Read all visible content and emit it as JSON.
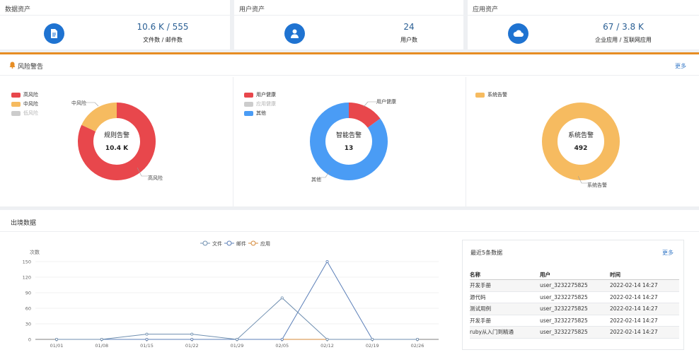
{
  "cards": [
    {
      "title": "数据资产",
      "value": "10.6 K / 555",
      "sub": "文件数 / 邮件数",
      "icon": "document-icon"
    },
    {
      "title": "用户资产",
      "value": "24",
      "sub": "用户数",
      "icon": "user-icon"
    },
    {
      "title": "应用资产",
      "value": "67 / 3.8 K",
      "sub": "企业应用 / 互联网应用",
      "icon": "cloud-icon"
    }
  ],
  "risk": {
    "title": "风险警告",
    "more": "更多",
    "donuts": [
      {
        "center_name": "规则告警",
        "center_value": "10.4 K",
        "legend": [
          {
            "label": "高风险",
            "color": "#e8474c",
            "active": true
          },
          {
            "label": "中风险",
            "color": "#f6bb60",
            "active": true
          },
          {
            "label": "低风险",
            "color": "#cccccc",
            "active": false
          }
        ],
        "slices": [
          {
            "label": "高风险",
            "value": 82,
            "color": "#e8474c"
          },
          {
            "label": "中风险",
            "value": 18,
            "color": "#f6bb60"
          }
        ]
      },
      {
        "center_name": "智能告警",
        "center_value": "13",
        "legend": [
          {
            "label": "用户健康",
            "color": "#e8474c",
            "active": true
          },
          {
            "label": "应用健康",
            "color": "#cccccc",
            "active": false
          },
          {
            "label": "其他",
            "color": "#4a9cf5",
            "active": true
          }
        ],
        "slices": [
          {
            "label": "用户健康",
            "value": 15,
            "color": "#e8474c"
          },
          {
            "label": "其他",
            "value": 85,
            "color": "#4a9cf5"
          }
        ]
      },
      {
        "center_name": "系统告警",
        "center_value": "492",
        "legend": [
          {
            "label": "系统告警",
            "color": "#f6bb60",
            "active": true
          }
        ],
        "slices": [
          {
            "label": "系统告警",
            "value": 100,
            "color": "#f6bb60"
          }
        ]
      }
    ]
  },
  "outbound": {
    "title": "出境数据",
    "recent": {
      "title": "最近5条数据",
      "more": "更多",
      "headers": [
        "名称",
        "用户",
        "时间"
      ],
      "rows": [
        [
          "开发手册",
          "user_3232275825",
          "2022-02-14 14:27"
        ],
        [
          "源代码",
          "user_3232275825",
          "2022-02-14 14:27"
        ],
        [
          "测试用例",
          "user_3232275825",
          "2022-02-14 14:27"
        ],
        [
          "开发手册",
          "user_3232275825",
          "2022-02-14 14:27"
        ],
        [
          "ruby从入门到精通",
          "user_3232275825",
          "2022-02-14 14:27"
        ]
      ]
    }
  },
  "chart_data": {
    "type": "line",
    "ylabel": "次数",
    "ylim": [
      0,
      150
    ],
    "yticks": [
      0,
      30,
      60,
      90,
      120,
      150
    ],
    "categories": [
      "01/01",
      "01/08",
      "01/15",
      "01/22",
      "01/29",
      "02/05",
      "02/12",
      "02/19",
      "02/26"
    ],
    "legend_position": "top-center",
    "series": [
      {
        "name": "文件",
        "color": "#6f8fb0",
        "values": [
          0,
          0,
          10,
          10,
          0,
          80,
          0,
          0,
          0
        ]
      },
      {
        "name": "邮件",
        "color": "#5b7fb8",
        "values": [
          0,
          0,
          0,
          0,
          0,
          0,
          150,
          0,
          0
        ]
      },
      {
        "name": "应用",
        "color": "#d58a3a",
        "values": [
          0,
          0,
          0,
          0,
          0,
          0,
          0,
          0,
          0
        ]
      }
    ]
  }
}
